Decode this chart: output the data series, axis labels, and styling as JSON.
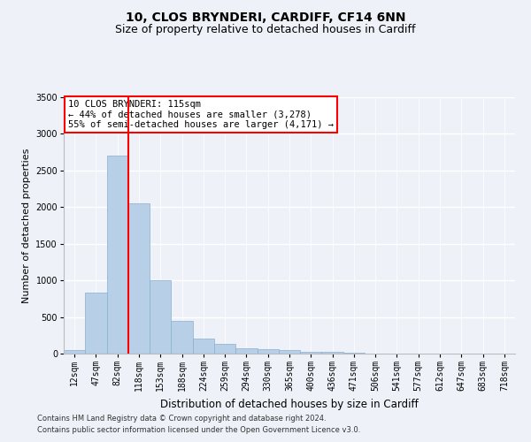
{
  "title1": "10, CLOS BRYNDERI, CARDIFF, CF14 6NN",
  "title2": "Size of property relative to detached houses in Cardiff",
  "xlabel": "Distribution of detached houses by size in Cardiff",
  "ylabel": "Number of detached properties",
  "bins": [
    "12sqm",
    "47sqm",
    "82sqm",
    "118sqm",
    "153sqm",
    "188sqm",
    "224sqm",
    "259sqm",
    "294sqm",
    "330sqm",
    "365sqm",
    "400sqm",
    "436sqm",
    "471sqm",
    "506sqm",
    "541sqm",
    "577sqm",
    "612sqm",
    "647sqm",
    "683sqm",
    "718sqm"
  ],
  "values": [
    50,
    830,
    2700,
    2050,
    1000,
    450,
    200,
    130,
    70,
    60,
    50,
    30,
    20,
    10,
    5,
    3,
    2,
    1,
    1,
    0,
    0
  ],
  "bar_color": "#b8cfe8",
  "bar_edge_color": "#8aafd0",
  "vline_color": "red",
  "vline_pos": 2.5,
  "annotation_text": "10 CLOS BRYNDERI: 115sqm\n← 44% of detached houses are smaller (3,278)\n55% of semi-detached houses are larger (4,171) →",
  "annotation_box_color": "white",
  "annotation_box_edge_color": "red",
  "ylim": [
    0,
    3500
  ],
  "yticks": [
    0,
    500,
    1000,
    1500,
    2000,
    2500,
    3000,
    3500
  ],
  "footnote1": "Contains HM Land Registry data © Crown copyright and database right 2024.",
  "footnote2": "Contains public sector information licensed under the Open Government Licence v3.0.",
  "background_color": "#eef2f8",
  "grid_color": "white",
  "title1_fontsize": 10,
  "title2_fontsize": 9,
  "ylabel_fontsize": 8,
  "xlabel_fontsize": 8.5,
  "tick_fontsize": 7,
  "annotation_fontsize": 7.5,
  "footnote_fontsize": 6
}
